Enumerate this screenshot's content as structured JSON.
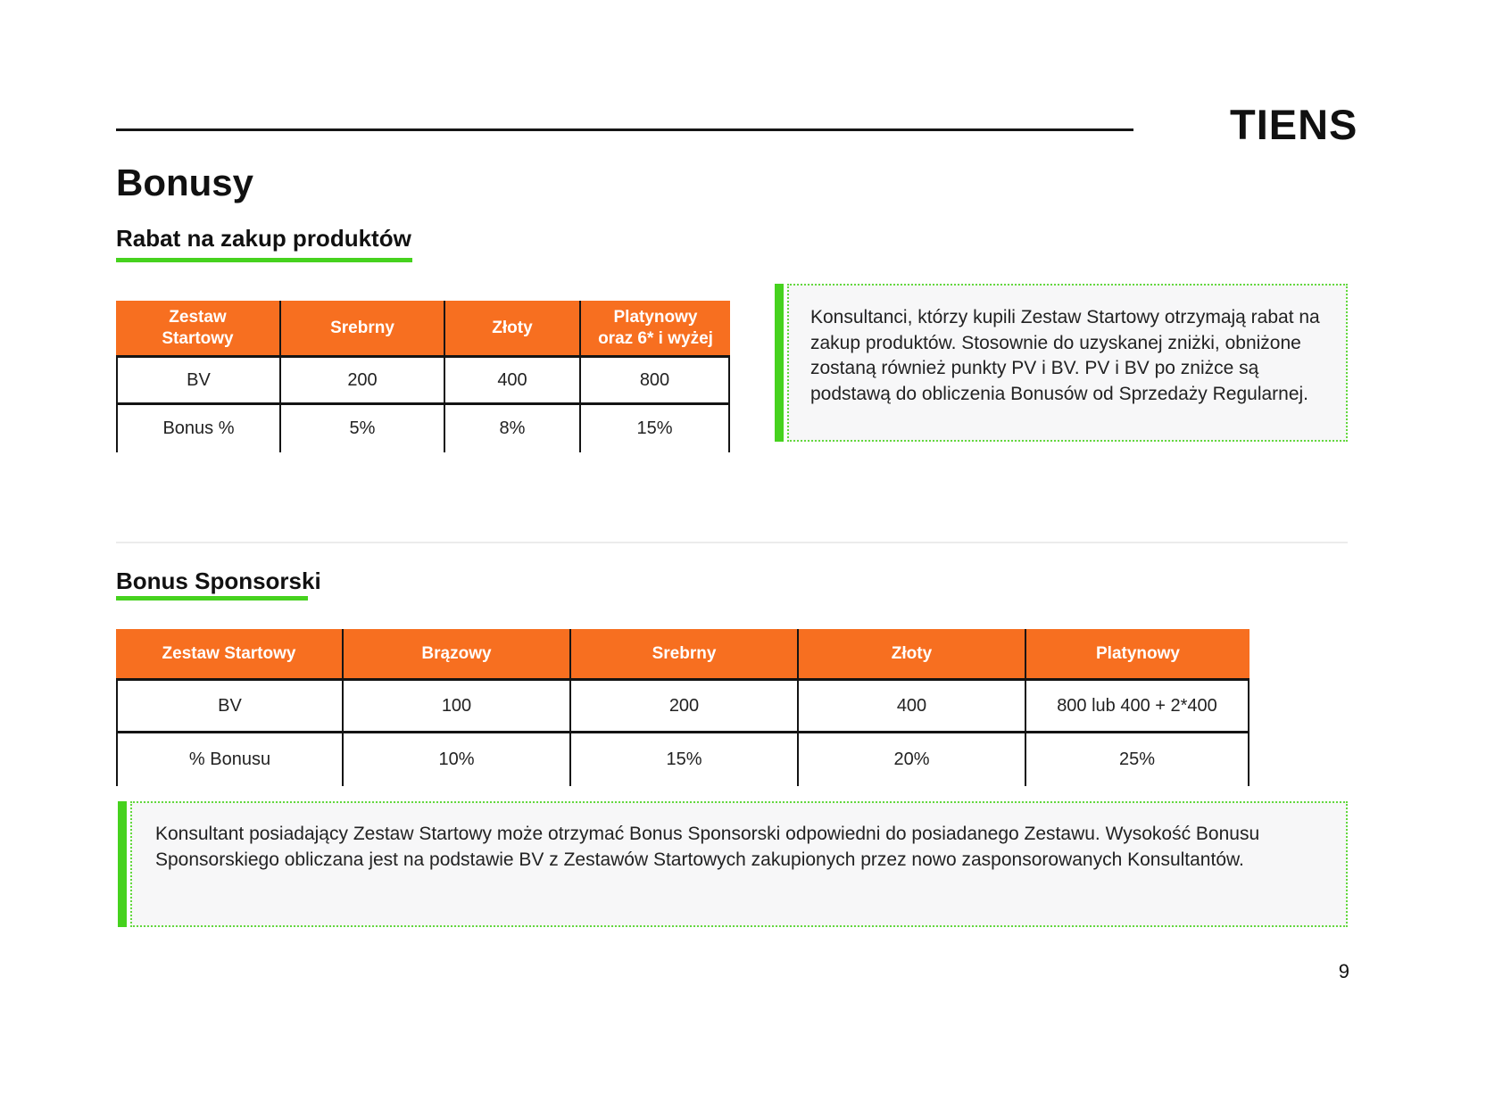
{
  "header": {
    "logo": "TIENS"
  },
  "title": "Bonusy",
  "page_number": "9",
  "colors": {
    "accent_orange": "#f76f20",
    "accent_green": "#46d21e",
    "note_background": "#f7f7f8"
  },
  "section_rabat": {
    "heading": "Rabat na zakup produktów",
    "table": {
      "type": "table",
      "columns": [
        "Zestaw\nStartowy",
        "Srebrny",
        "Złoty",
        "Platynowy\noraz 6* i wyżej"
      ],
      "rows": [
        [
          "BV",
          "200",
          "400",
          "800"
        ],
        [
          "Bonus %",
          "5%",
          "8%",
          "15%"
        ]
      ]
    },
    "note": "Konsultanci, którzy kupili Zestaw Startowy otrzymają rabat na zakup produktów. Stosownie do uzyskanej zniżki, obniżone zostaną również punkty PV i BV. PV i BV po zniżce są podstawą do obliczenia Bonusów od Sprzedaży Regularnej."
  },
  "section_sponsorski": {
    "heading": "Bonus Sponsorski",
    "table": {
      "type": "table",
      "columns": [
        "Zestaw Startowy",
        "Brązowy",
        "Srebrny",
        "Złoty",
        "Platynowy"
      ],
      "rows": [
        [
          "BV",
          "100",
          "200",
          "400",
          "800 lub 400 + 2*400"
        ],
        [
          "% Bonusu",
          "10%",
          "15%",
          "20%",
          "25%"
        ]
      ]
    },
    "note": "Konsultant posiadający Zestaw Startowy może otrzymać Bonus Sponsorski odpowiedni do posiadanego Zestawu. Wysokość Bonusu Sponsorskiego obliczana jest na podstawie BV z Zestawów Startowych zakupionych przez nowo zasponsorowanych Konsultantów."
  }
}
